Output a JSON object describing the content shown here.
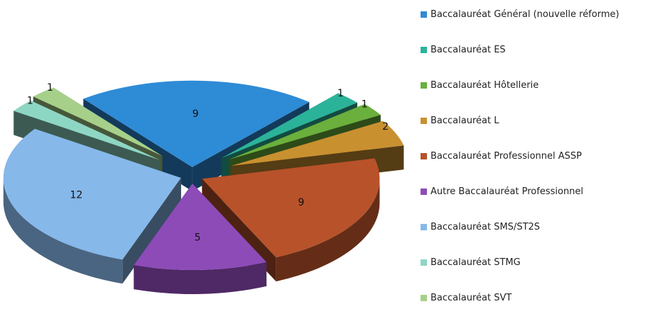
{
  "chart_data": {
    "type": "pie",
    "title": "",
    "three_d": true,
    "exploded": true,
    "legend_position": "right",
    "slices": [
      {
        "label": "Baccalauréat Général (nouvelle réforme)",
        "value": 9,
        "color": "#2E8BD6"
      },
      {
        "label": "Baccalauréat ES",
        "value": 1,
        "color": "#2BB39A"
      },
      {
        "label": "Baccalauréat Hôtellerie",
        "value": 1,
        "color": "#6BAF3C"
      },
      {
        "label": "Baccalauréat L",
        "value": 2,
        "color": "#C8902F"
      },
      {
        "label": "Baccalauréat Professionnel ASSP",
        "value": 9,
        "color": "#B8522A"
      },
      {
        "label": "Autre Baccalauréat Professionnel",
        "value": 5,
        "color": "#8D4BB8"
      },
      {
        "label": "Baccalauréat SMS/ST2S",
        "value": 12,
        "color": "#86B8EA"
      },
      {
        "label": "Baccalauréat STMG",
        "value": 1,
        "color": "#8ED6C4"
      },
      {
        "label": "Baccalauréat SVT",
        "value": 1,
        "color": "#A6D08A"
      }
    ]
  }
}
